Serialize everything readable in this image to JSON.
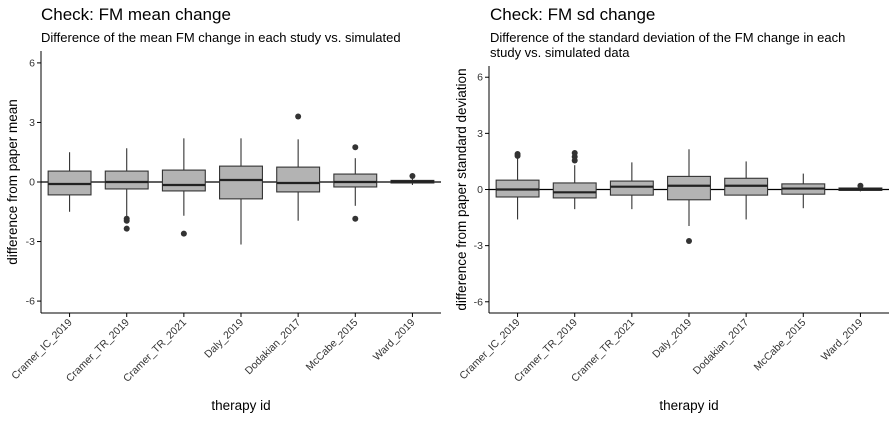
{
  "chart_data": [
    {
      "type": "box",
      "title": "Check: FM mean change",
      "subtitle_lines": [
        "Difference of the mean FM change in each study vs. simulated"
      ],
      "xlabel": "therapy id",
      "ylabel": "difference from paper mean",
      "ylim": [
        -6.6,
        6.6
      ],
      "yticks": [
        -6,
        -3,
        0,
        3,
        6
      ],
      "reference_line_y": 0,
      "categories": [
        "Cramer_IC_2019",
        "Cramer_TR_2019",
        "Cramer_TR_2021",
        "Daly_2019",
        "Dodakian_2017",
        "McCabe_2015",
        "Ward_2019"
      ],
      "boxes": [
        {
          "q1": -0.65,
          "median": -0.1,
          "q3": 0.55,
          "whisker_low": -1.5,
          "whisker_high": 1.5,
          "outliers": []
        },
        {
          "q1": -0.35,
          "median": 0.0,
          "q3": 0.55,
          "whisker_low": -1.75,
          "whisker_high": 1.7,
          "outliers": [
            -1.85,
            -1.95,
            -2.35
          ]
        },
        {
          "q1": -0.45,
          "median": -0.15,
          "q3": 0.6,
          "whisker_low": -1.7,
          "whisker_high": 2.2,
          "outliers": [
            -2.6
          ]
        },
        {
          "q1": -0.85,
          "median": 0.1,
          "q3": 0.8,
          "whisker_low": -3.15,
          "whisker_high": 2.2,
          "outliers": []
        },
        {
          "q1": -0.5,
          "median": -0.05,
          "q3": 0.75,
          "whisker_low": -1.95,
          "whisker_high": 2.15,
          "outliers": [
            3.3
          ]
        },
        {
          "q1": -0.25,
          "median": 0.0,
          "q3": 0.4,
          "whisker_low": -1.2,
          "whisker_high": 1.2,
          "outliers": [
            1.75,
            -1.85
          ]
        },
        {
          "q1": -0.05,
          "median": 0.02,
          "q3": 0.08,
          "whisker_low": -0.15,
          "whisker_high": 0.2,
          "outliers": [
            0.3
          ]
        }
      ]
    },
    {
      "type": "box",
      "title": "Check: FM sd change",
      "subtitle_lines": [
        "Difference of the standard deviation of the FM change in each",
        "study vs. simulated data"
      ],
      "xlabel": "therapy id",
      "ylabel": "difference from paper standard deviation",
      "ylim": [
        -6.6,
        6.6
      ],
      "yticks": [
        -6,
        -3,
        0,
        3,
        6
      ],
      "reference_line_y": 0,
      "categories": [
        "Cramer_IC_2019",
        "Cramer_TR_2019",
        "Cramer_TR_2021",
        "Daly_2019",
        "Dodakian_2017",
        "McCabe_2015",
        "Ward_2019"
      ],
      "boxes": [
        {
          "q1": -0.4,
          "median": 0.0,
          "q3": 0.5,
          "whisker_low": -1.6,
          "whisker_high": 1.75,
          "outliers": [
            1.9,
            1.8
          ]
        },
        {
          "q1": -0.45,
          "median": -0.15,
          "q3": 0.35,
          "whisker_low": -1.05,
          "whisker_high": 1.3,
          "outliers": [
            1.95,
            1.75,
            1.55
          ]
        },
        {
          "q1": -0.3,
          "median": 0.15,
          "q3": 0.45,
          "whisker_low": -1.05,
          "whisker_high": 1.45,
          "outliers": []
        },
        {
          "q1": -0.55,
          "median": 0.2,
          "q3": 0.7,
          "whisker_low": -1.95,
          "whisker_high": 2.15,
          "outliers": [
            -2.75
          ]
        },
        {
          "q1": -0.3,
          "median": 0.2,
          "q3": 0.6,
          "whisker_low": -1.6,
          "whisker_high": 1.5,
          "outliers": []
        },
        {
          "q1": -0.25,
          "median": 0.05,
          "q3": 0.3,
          "whisker_low": -1.0,
          "whisker_high": 0.85,
          "outliers": []
        },
        {
          "q1": -0.05,
          "median": 0.02,
          "q3": 0.08,
          "whisker_low": -0.1,
          "whisker_high": 0.15,
          "outliers": [
            0.2
          ]
        }
      ]
    }
  ]
}
